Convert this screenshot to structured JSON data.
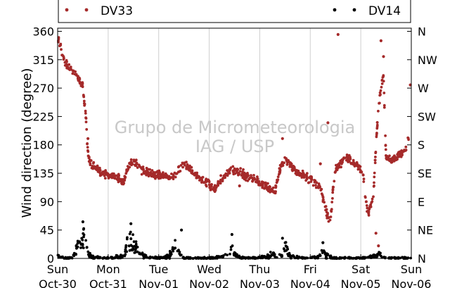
{
  "chart_data": {
    "type": "scatter",
    "ylabel": "Wind direction (degree)",
    "ylim": [
      0,
      365
    ],
    "xlim_days": [
      0,
      7
    ],
    "y_ticks": [
      0,
      45,
      90,
      135,
      180,
      225,
      270,
      315,
      360
    ],
    "right_axis_labels": [
      "N",
      "NE",
      "E",
      "SE",
      "S",
      "SW",
      "W",
      "NW",
      "N"
    ],
    "x_ticks": [
      {
        "day": "Sun",
        "date": "Oct-30"
      },
      {
        "day": "Mon",
        "date": "Oct-31"
      },
      {
        "day": "Tue",
        "date": "Nov-01"
      },
      {
        "day": "Wed",
        "date": "Nov-02"
      },
      {
        "day": "Thu",
        "date": "Nov-03"
      },
      {
        "day": "Fri",
        "date": "Nov-04"
      },
      {
        "day": "Sat",
        "date": "Nov-05"
      },
      {
        "day": "Sun",
        "date": "Nov-06"
      }
    ],
    "watermark": [
      "Grupo de Micrometeorologia",
      "IAG / USP"
    ],
    "grid_x": true,
    "legend": "top",
    "series": [
      {
        "name": "DV33",
        "color": "#a52a2a",
        "jitter": 9,
        "points": [
          [
            0.0,
            352
          ],
          [
            0.05,
            338
          ],
          [
            0.1,
            322
          ],
          [
            0.15,
            312
          ],
          [
            0.2,
            305
          ],
          [
            0.25,
            300
          ],
          [
            0.3,
            296
          ],
          [
            0.35,
            292
          ],
          [
            0.4,
            288
          ],
          [
            0.45,
            280
          ],
          [
            0.5,
            272
          ],
          [
            0.52,
            250
          ],
          [
            0.55,
            235
          ],
          [
            0.6,
            165
          ],
          [
            0.65,
            152
          ],
          [
            0.7,
            148
          ],
          [
            0.8,
            140
          ],
          [
            0.9,
            135
          ],
          [
            1.0,
            132
          ],
          [
            1.1,
            130
          ],
          [
            1.2,
            128
          ],
          [
            1.3,
            120
          ],
          [
            1.4,
            145
          ],
          [
            1.5,
            155
          ],
          [
            1.6,
            145
          ],
          [
            1.7,
            138
          ],
          [
            1.8,
            135
          ],
          [
            1.9,
            132
          ],
          [
            2.0,
            133
          ],
          [
            2.1,
            132
          ],
          [
            2.2,
            128
          ],
          [
            2.3,
            130
          ],
          [
            2.4,
            140
          ],
          [
            2.5,
            150
          ],
          [
            2.6,
            142
          ],
          [
            2.7,
            135
          ],
          [
            2.8,
            128
          ],
          [
            2.9,
            122
          ],
          [
            3.0,
            118
          ],
          [
            3.1,
            108
          ],
          [
            3.2,
            120
          ],
          [
            3.3,
            132
          ],
          [
            3.4,
            140
          ],
          [
            3.5,
            138
          ],
          [
            3.6,
            136
          ],
          [
            3.7,
            132
          ],
          [
            3.8,
            130
          ],
          [
            3.9,
            125
          ],
          [
            4.0,
            120
          ],
          [
            4.1,
            115
          ],
          [
            4.2,
            110
          ],
          [
            4.3,
            105
          ],
          [
            4.4,
            140
          ],
          [
            4.5,
            158
          ],
          [
            4.6,
            150
          ],
          [
            4.7,
            140
          ],
          [
            4.8,
            135
          ],
          [
            4.9,
            130
          ],
          [
            5.0,
            125
          ],
          [
            5.1,
            120
          ],
          [
            5.2,
            112
          ],
          [
            5.3,
            80
          ],
          [
            5.35,
            65
          ],
          [
            5.4,
            60
          ],
          [
            5.45,
            110
          ],
          [
            5.5,
            140
          ],
          [
            5.6,
            150
          ],
          [
            5.7,
            160
          ],
          [
            5.8,
            155
          ],
          [
            5.9,
            150
          ],
          [
            6.0,
            140
          ],
          [
            6.05,
            130
          ],
          [
            6.1,
            90
          ],
          [
            6.15,
            70
          ],
          [
            6.2,
            85
          ],
          [
            6.25,
            100
          ],
          [
            6.3,
            180
          ],
          [
            6.35,
            240
          ],
          [
            6.4,
            270
          ],
          [
            6.45,
            290
          ],
          [
            6.5,
            160
          ],
          [
            6.6,
            155
          ],
          [
            6.7,
            160
          ],
          [
            6.8,
            165
          ],
          [
            6.9,
            175
          ],
          [
            6.97,
            200
          ]
        ],
        "outliers": [
          [
            5.55,
            355
          ],
          [
            5.35,
            215
          ],
          [
            5.2,
            150
          ],
          [
            6.4,
            345
          ],
          [
            6.45,
            320
          ],
          [
            6.3,
            40
          ],
          [
            6.35,
            20
          ],
          [
            6.98,
            275
          ],
          [
            0.6,
            190
          ],
          [
            4.45,
            190
          ],
          [
            3.6,
            115
          ]
        ]
      },
      {
        "name": "DV14",
        "color": "#000000",
        "jitter": 8,
        "points": [
          [
            0.0,
            5
          ],
          [
            0.05,
            3
          ],
          [
            0.1,
            2
          ],
          [
            0.2,
            0
          ],
          [
            0.3,
            2
          ],
          [
            0.35,
            15
          ],
          [
            0.4,
            25
          ],
          [
            0.45,
            35
          ],
          [
            0.5,
            45
          ],
          [
            0.55,
            30
          ],
          [
            0.6,
            10
          ],
          [
            0.7,
            3
          ],
          [
            0.9,
            0
          ],
          [
            1.0,
            0
          ],
          [
            1.3,
            5
          ],
          [
            1.35,
            20
          ],
          [
            1.4,
            35
          ],
          [
            1.45,
            40
          ],
          [
            1.5,
            30
          ],
          [
            1.55,
            25
          ],
          [
            1.6,
            15
          ],
          [
            1.7,
            5
          ],
          [
            2.0,
            0
          ],
          [
            2.2,
            5
          ],
          [
            2.25,
            15
          ],
          [
            2.3,
            20
          ],
          [
            2.35,
            30
          ],
          [
            2.4,
            10
          ],
          [
            2.5,
            0
          ],
          [
            2.8,
            0
          ],
          [
            3.0,
            0
          ],
          [
            3.3,
            5
          ],
          [
            3.4,
            20
          ],
          [
            3.45,
            30
          ],
          [
            3.5,
            10
          ],
          [
            3.6,
            2
          ],
          [
            3.9,
            0
          ],
          [
            4.2,
            5
          ],
          [
            4.25,
            15
          ],
          [
            4.3,
            8
          ],
          [
            4.45,
            5
          ],
          [
            4.5,
            25
          ],
          [
            4.55,
            15
          ],
          [
            4.6,
            5
          ],
          [
            4.9,
            0
          ],
          [
            5.2,
            5
          ],
          [
            5.25,
            15
          ],
          [
            5.3,
            8
          ],
          [
            5.5,
            0
          ],
          [
            5.8,
            0
          ],
          [
            6.0,
            0
          ],
          [
            6.3,
            5
          ],
          [
            6.35,
            10
          ],
          [
            6.5,
            0
          ],
          [
            6.8,
            0
          ],
          [
            7.0,
            0
          ]
        ],
        "outliers": [
          [
            0.5,
            58
          ],
          [
            1.45,
            55
          ],
          [
            2.45,
            45
          ],
          [
            3.45,
            38
          ],
          [
            4.45,
            32
          ],
          [
            5.25,
            25
          ]
        ]
      }
    ]
  }
}
